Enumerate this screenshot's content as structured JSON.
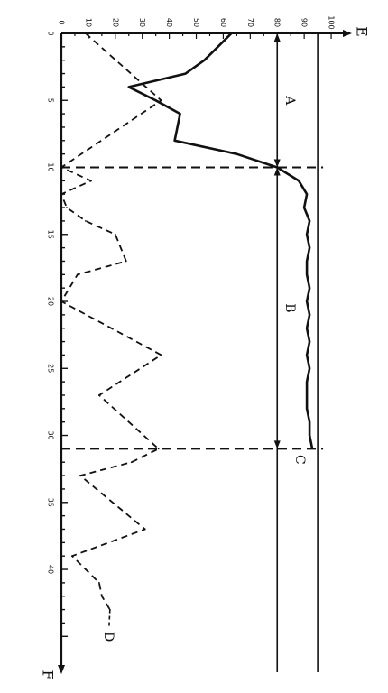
{
  "chart_data": {
    "type": "line",
    "orientation": "rotated-90-clockwise",
    "x_axis": {
      "label": "F",
      "range": [
        0,
        47
      ],
      "ticks": [
        {
          "value": 0,
          "label": "0"
        },
        {
          "value": 5,
          "label": "5"
        },
        {
          "value": 10,
          "label": "10"
        },
        {
          "value": 15,
          "label": "15"
        },
        {
          "value": 20,
          "label": "20"
        },
        {
          "value": 25,
          "label": "25"
        },
        {
          "value": 30,
          "label": "30"
        },
        {
          "value": 35,
          "label": "35"
        },
        {
          "value": 40,
          "label": "40"
        }
      ]
    },
    "y_axis": {
      "label": "E",
      "range": [
        0,
        105
      ],
      "ticks": [
        {
          "value": 0,
          "label": "0"
        },
        {
          "value": 10,
          "label": "10"
        },
        {
          "value": 20,
          "label": "20"
        },
        {
          "value": 30,
          "label": "30"
        },
        {
          "value": 40,
          "label": "40"
        },
        {
          "value": 50,
          "label": "50"
        },
        {
          "value": 60,
          "label": "60"
        },
        {
          "value": 70,
          "label": "70"
        },
        {
          "value": 80,
          "label": "80"
        },
        {
          "value": 90,
          "label": "90"
        },
        {
          "value": 100,
          "label": "100"
        }
      ]
    },
    "series": [
      {
        "style": "solid",
        "points": [
          [
            0,
            63
          ],
          [
            1,
            58
          ],
          [
            2,
            53
          ],
          [
            3,
            46
          ],
          [
            4,
            25
          ],
          [
            5,
            35
          ],
          [
            6,
            44
          ],
          [
            7,
            43
          ],
          [
            8,
            42
          ],
          [
            9,
            65
          ],
          [
            10,
            80
          ],
          [
            11,
            88
          ],
          [
            12,
            91
          ],
          [
            13,
            90
          ],
          [
            14,
            92
          ],
          [
            15,
            91
          ],
          [
            16,
            92
          ],
          [
            17,
            91
          ],
          [
            18,
            91
          ],
          [
            19,
            92
          ],
          [
            20,
            91
          ],
          [
            21,
            92
          ],
          [
            22,
            91
          ],
          [
            23,
            92
          ],
          [
            24,
            91
          ],
          [
            25,
            92
          ],
          [
            26,
            91
          ],
          [
            27,
            91
          ],
          [
            28,
            91
          ],
          [
            29,
            92
          ],
          [
            30,
            92
          ],
          [
            31,
            93
          ]
        ]
      },
      {
        "style": "dashed",
        "label": "D",
        "points": [
          [
            0,
            9
          ],
          [
            5,
            37
          ],
          [
            10,
            0
          ],
          [
            11,
            11
          ],
          [
            12,
            0
          ],
          [
            13,
            2
          ],
          [
            14,
            9
          ],
          [
            15,
            20
          ],
          [
            17,
            24
          ],
          [
            18,
            6
          ],
          [
            20,
            0
          ],
          [
            24,
            37
          ],
          [
            27,
            14
          ],
          [
            31,
            36
          ],
          [
            32,
            26
          ],
          [
            33,
            7
          ],
          [
            37,
            31
          ],
          [
            39,
            4
          ],
          [
            40,
            9
          ],
          [
            41,
            14
          ],
          [
            42,
            15
          ],
          [
            43,
            18
          ]
        ]
      }
    ],
    "reference_lines": [
      {
        "kind": "horizontal",
        "y": 95,
        "style": "solid"
      },
      {
        "kind": "horizontal",
        "y": 80,
        "style": "solid"
      },
      {
        "kind": "vertical",
        "x": 10,
        "style": "dashed"
      },
      {
        "kind": "vertical",
        "x": 31,
        "style": "dashed"
      }
    ],
    "annotations": [
      {
        "text": "A",
        "from_x": 0,
        "to_x": 10,
        "y": 80
      },
      {
        "text": "B",
        "from_x": 10,
        "to_x": 31,
        "y": 80
      },
      {
        "text": "C",
        "x": 31,
        "y": 95
      }
    ],
    "grid": false,
    "legend": "none"
  }
}
